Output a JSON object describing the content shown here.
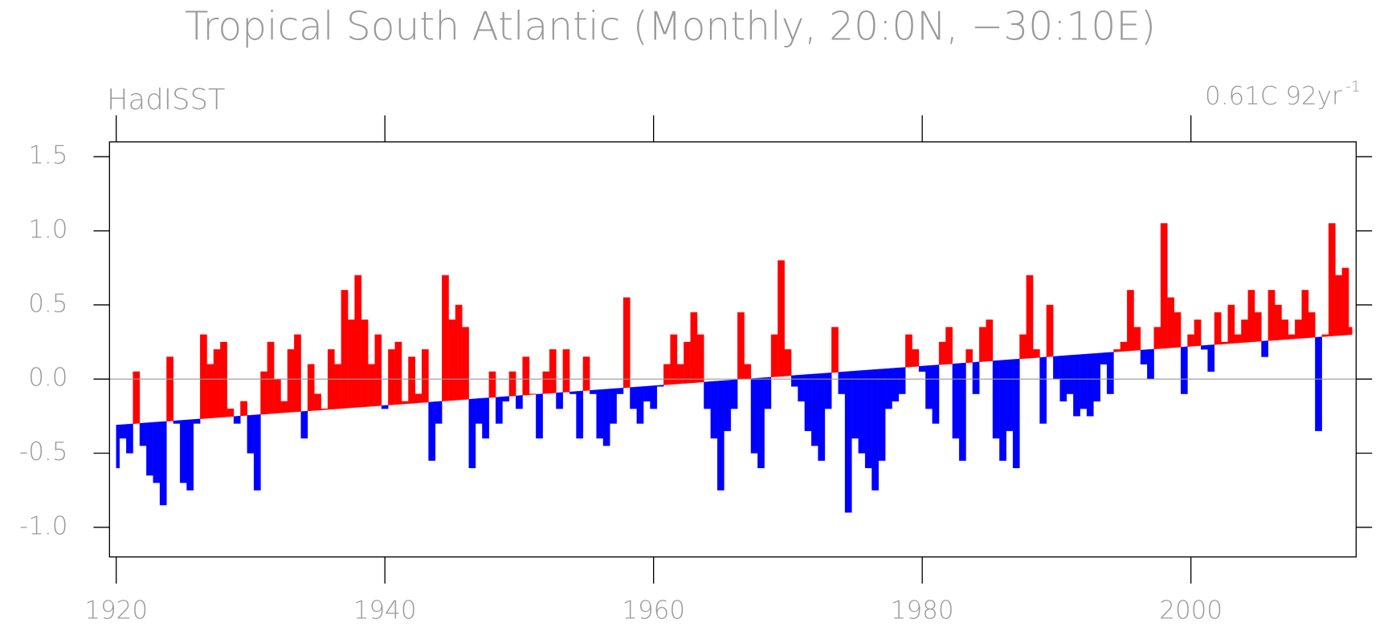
{
  "chart_data": {
    "type": "area",
    "title": "Tropical South Atlantic (Monthly, 20:0N, −30:10E)",
    "subtitle": "HadISST",
    "trend_label": "0.61C 92yr",
    "trend_label_sup": "-1",
    "x": [
      1920,
      1920.5,
      1921,
      1921.5,
      1922,
      1922.5,
      1923,
      1923.5,
      1924,
      1924.5,
      1925,
      1925.5,
      1926,
      1926.5,
      1927,
      1927.5,
      1928,
      1928.5,
      1929,
      1929.5,
      1930,
      1930.5,
      1931,
      1931.5,
      1932,
      1932.5,
      1933,
      1933.5,
      1934,
      1934.5,
      1935,
      1935.5,
      1936,
      1936.5,
      1937,
      1937.5,
      1938,
      1938.5,
      1939,
      1939.5,
      1940,
      1940.5,
      1941,
      1941.5,
      1942,
      1942.5,
      1943,
      1943.5,
      1944,
      1944.5,
      1945,
      1945.5,
      1946,
      1946.5,
      1947,
      1947.5,
      1948,
      1948.5,
      1949,
      1949.5,
      1950,
      1950.5,
      1951,
      1951.5,
      1952,
      1952.5,
      1953,
      1953.5,
      1954,
      1954.5,
      1955,
      1955.5,
      1956,
      1956.5,
      1957,
      1957.5,
      1958,
      1958.5,
      1959,
      1959.5,
      1960,
      1960.5,
      1961,
      1961.5,
      1962,
      1962.5,
      1963,
      1963.5,
      1964,
      1964.5,
      1965,
      1965.5,
      1966,
      1966.5,
      1967,
      1967.5,
      1968,
      1968.5,
      1969,
      1969.5,
      1970,
      1970.5,
      1971,
      1971.5,
      1972,
      1972.5,
      1973,
      1973.5,
      1974,
      1974.5,
      1975,
      1975.5,
      1976,
      1976.5,
      1977,
      1977.5,
      1978,
      1978.5,
      1979,
      1979.5,
      1980,
      1980.5,
      1981,
      1981.5,
      1982,
      1982.5,
      1983,
      1983.5,
      1984,
      1984.5,
      1985,
      1985.5,
      1986,
      1986.5,
      1987,
      1987.5,
      1988,
      1988.5,
      1989,
      1989.5,
      1990,
      1990.5,
      1991,
      1991.5,
      1992,
      1992.5,
      1993,
      1993.5,
      1994,
      1994.5,
      1995,
      1995.5,
      1996,
      1996.5,
      1997,
      1997.5,
      1998,
      1998.5,
      1999,
      1999.5,
      2000,
      2000.5,
      2001,
      2001.5,
      2002,
      2002.5,
      2003,
      2003.5,
      2004,
      2004.5,
      2005,
      2005.5,
      2006,
      2006.5,
      2007,
      2007.5,
      2008,
      2008.5,
      2009,
      2009.5,
      2010,
      2010.5,
      2011,
      2011.5,
      2012
    ],
    "values": [
      -0.6,
      -0.4,
      -0.5,
      0.05,
      -0.45,
      -0.65,
      -0.7,
      -0.85,
      0.15,
      -0.3,
      -0.7,
      -0.75,
      -0.3,
      0.3,
      0.1,
      0.2,
      0.25,
      -0.2,
      -0.3,
      -0.15,
      -0.5,
      -0.75,
      0.05,
      0.25,
      0.0,
      -0.15,
      0.2,
      0.3,
      -0.4,
      0.1,
      -0.1,
      -0.2,
      0.2,
      0.1,
      0.6,
      0.4,
      0.7,
      0.4,
      0.1,
      0.3,
      -0.2,
      0.2,
      0.25,
      -0.15,
      0.15,
      -0.1,
      0.2,
      -0.55,
      -0.3,
      0.7,
      0.4,
      0.5,
      0.35,
      -0.6,
      -0.3,
      -0.4,
      0.05,
      -0.3,
      -0.15,
      0.05,
      -0.2,
      0.15,
      -0.1,
      -0.4,
      0.05,
      0.2,
      -0.2,
      0.2,
      -0.1,
      -0.4,
      0.15,
      -0.1,
      -0.4,
      -0.45,
      -0.3,
      -0.1,
      0.55,
      -0.2,
      -0.3,
      -0.15,
      -0.2,
      -0.05,
      0.1,
      0.3,
      0.1,
      0.25,
      0.45,
      0.3,
      -0.2,
      -0.4,
      -0.75,
      -0.35,
      -0.2,
      0.45,
      0.1,
      -0.5,
      -0.6,
      -0.2,
      0.3,
      0.8,
      0.2,
      -0.05,
      -0.15,
      -0.35,
      -0.45,
      -0.55,
      -0.2,
      0.35,
      -0.1,
      -0.9,
      -0.4,
      -0.5,
      -0.6,
      -0.75,
      -0.55,
      -0.2,
      -0.15,
      -0.1,
      0.3,
      0.2,
      0.05,
      -0.2,
      -0.3,
      0.25,
      0.35,
      -0.4,
      -0.55,
      0.2,
      -0.1,
      0.35,
      0.4,
      -0.4,
      -0.55,
      -0.35,
      -0.6,
      0.3,
      0.7,
      0.2,
      -0.3,
      0.5,
      0.0,
      -0.15,
      -0.1,
      -0.25,
      -0.2,
      -0.25,
      -0.15,
      0.1,
      -0.1,
      0.2,
      0.25,
      0.6,
      0.35,
      0.1,
      0.0,
      0.35,
      1.05,
      0.55,
      0.45,
      -0.1,
      0.3,
      0.4,
      0.2,
      0.05,
      0.45,
      0.25,
      0.5,
      0.3,
      0.4,
      0.6,
      0.45,
      0.15,
      0.6,
      0.5,
      0.4,
      0.3,
      0.4,
      0.6,
      0.45,
      -0.35,
      0.3,
      1.05,
      0.7,
      0.75,
      0.35
    ],
    "trend": {
      "x": [
        1920,
        2012
      ],
      "values": [
        -0.31,
        0.3
      ]
    },
    "above_color": "#ff0000",
    "below_color": "#0000ff",
    "zero_line": true,
    "xlim": [
      1919.5,
      2012.3
    ],
    "ylim": [
      -1.2,
      1.6
    ],
    "xticks": [
      1920,
      1940,
      1960,
      1980,
      2000
    ],
    "yticks": [
      {
        "value": 1.5,
        "label": "1.5"
      },
      {
        "value": 1.0,
        "label": "1.0"
      },
      {
        "value": 0.5,
        "label": "0.5"
      },
      {
        "value": 0.0,
        "label": "0.0"
      },
      {
        "value": -0.5,
        "label": "-0.5"
      },
      {
        "value": -1.0,
        "label": "-1.0"
      }
    ]
  }
}
